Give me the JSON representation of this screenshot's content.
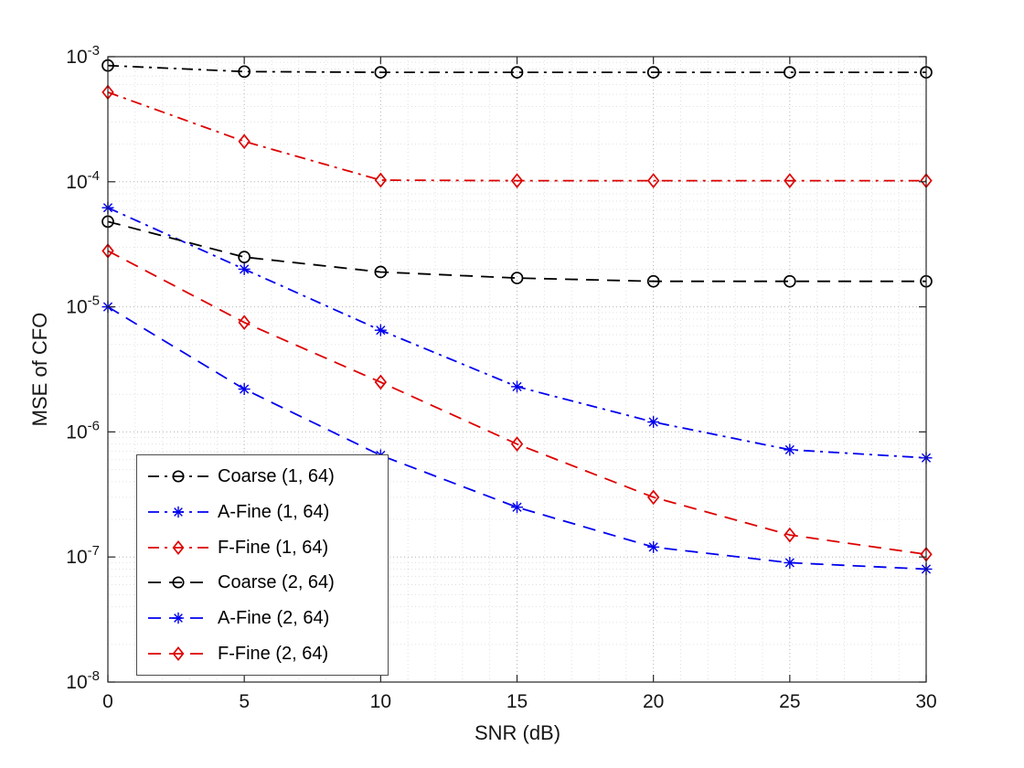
{
  "figure": {
    "background": "#ffffff"
  },
  "chart_data": {
    "type": "line",
    "title": "",
    "xlabel": "SNR (dB)",
    "ylabel": "MSE of CFO",
    "xlim": [
      0,
      30
    ],
    "x_ticks": [
      0,
      5,
      10,
      15,
      20,
      25,
      30
    ],
    "y_scale": "log",
    "ylim": [
      1e-08,
      0.001
    ],
    "y_tick_exponents": [
      -8,
      -7,
      -6,
      -5,
      -4,
      -3
    ],
    "grid": "major+minor dotted",
    "legend_position": "southwest",
    "x": [
      0,
      5,
      10,
      15,
      20,
      25,
      30
    ],
    "series": [
      {
        "name": "Coarse (1, 64)",
        "color": "#000000",
        "line": "dashdot",
        "marker": "circle",
        "values": [
          0.00085,
          0.00076,
          0.00075,
          0.00075,
          0.00075,
          0.00075,
          0.00075
        ]
      },
      {
        "name": "A-Fine (1, 64)",
        "color": "#0000ee",
        "line": "dashdot",
        "marker": "asterisk",
        "values": [
          6.2e-05,
          2e-05,
          6.5e-06,
          2.3e-06,
          1.2e-06,
          7.2e-07,
          6.2e-07
        ]
      },
      {
        "name": "F-Fine (1, 64)",
        "color": "#dd0000",
        "line": "dashdot",
        "marker": "diamond",
        "values": [
          0.00052,
          0.00021,
          0.000103,
          0.000102,
          0.000102,
          0.000102,
          0.000102
        ]
      },
      {
        "name": "Coarse (2, 64)",
        "color": "#000000",
        "line": "dashed",
        "marker": "circle",
        "values": [
          4.8e-05,
          2.5e-05,
          1.9e-05,
          1.7e-05,
          1.6e-05,
          1.6e-05,
          1.6e-05
        ]
      },
      {
        "name": "A-Fine (2, 64)",
        "color": "#0000ee",
        "line": "dashed",
        "marker": "asterisk",
        "values": [
          1e-05,
          2.2e-06,
          6.5e-07,
          2.5e-07,
          1.2e-07,
          9e-08,
          8e-08
        ]
      },
      {
        "name": "F-Fine (2, 64)",
        "color": "#dd0000",
        "line": "dashed",
        "marker": "diamond",
        "values": [
          2.8e-05,
          7.5e-06,
          2.5e-06,
          8e-07,
          3e-07,
          1.5e-07,
          1.05e-07
        ]
      }
    ]
  }
}
